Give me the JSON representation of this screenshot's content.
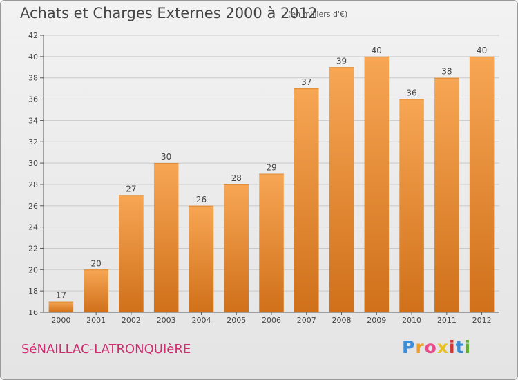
{
  "header": {
    "title": "Achats et Charges Externes 2000 à 2012",
    "subtitle": "(en milliers d'€)"
  },
  "footer": {
    "commune": "SéNAILLAC-LATRONQUIèRE",
    "logo": [
      "P",
      "r",
      "o",
      "x",
      "i",
      "t",
      "i"
    ],
    "logo_colors": [
      "#3a8ed8",
      "#f0a020",
      "#e84a8a",
      "#e8c020",
      "#d83030",
      "#3a8ed8",
      "#60b030"
    ]
  },
  "colors": {
    "bar_top": "#f7a654",
    "bar_bottom": "#d0701a",
    "grid": "#c9c9c9",
    "axis": "#555555",
    "text": "#444444"
  },
  "chart_data": {
    "type": "bar",
    "categories": [
      "2000",
      "2001",
      "2002",
      "2003",
      "2004",
      "2005",
      "2006",
      "2007",
      "2008",
      "2009",
      "2010",
      "2011",
      "2012"
    ],
    "values": [
      17,
      20,
      27,
      30,
      26,
      28,
      29,
      37,
      39,
      40,
      36,
      38,
      40
    ],
    "title": "Achats et Charges Externes 2000 à 2012",
    "ylim": [
      16,
      42
    ],
    "yticks": [
      16,
      18,
      20,
      22,
      24,
      26,
      28,
      30,
      32,
      34,
      36,
      38,
      40,
      42
    ],
    "grid": true,
    "data_labels": true
  }
}
